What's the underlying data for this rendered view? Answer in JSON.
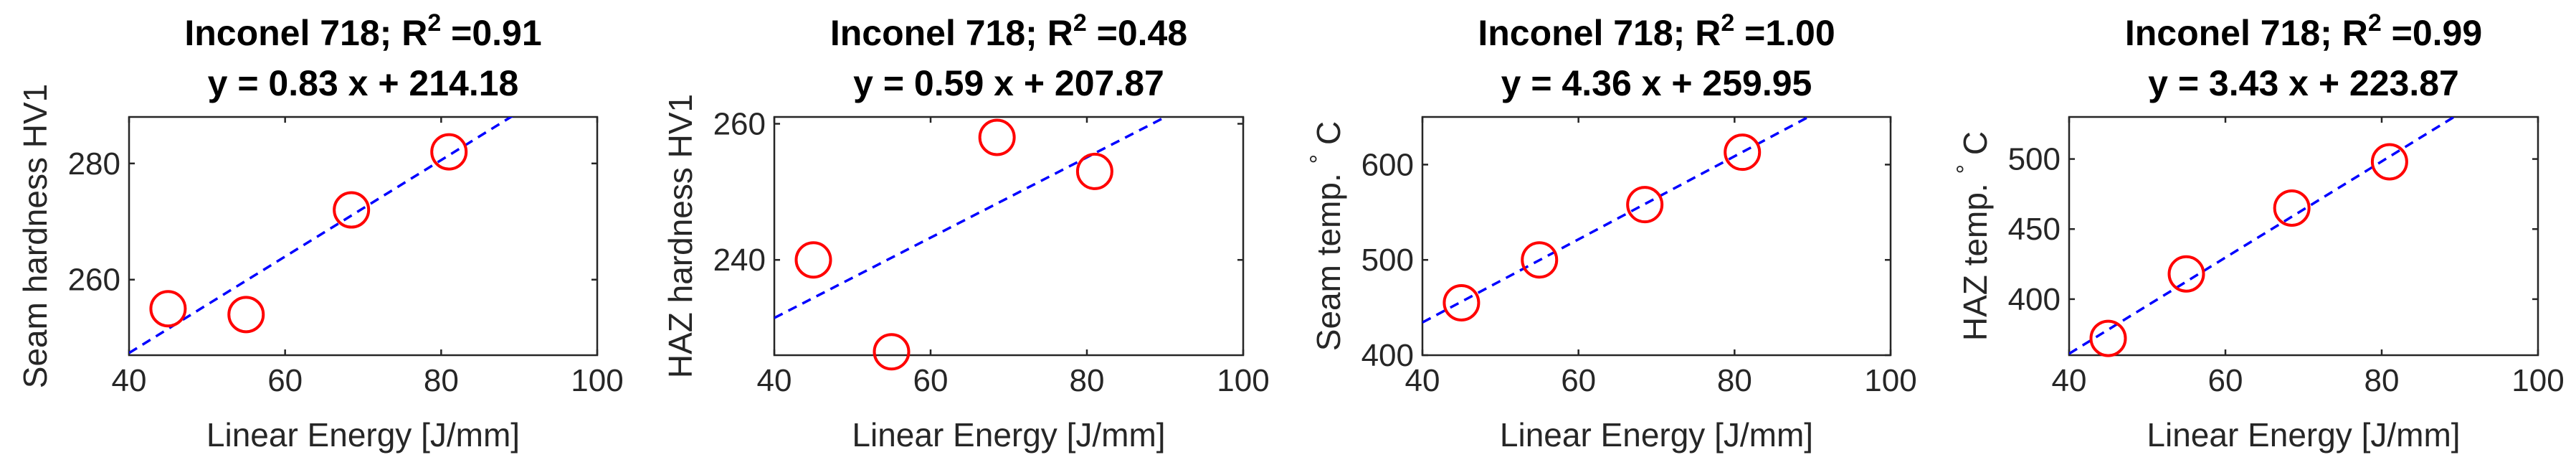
{
  "chart_data": [
    {
      "type": "scatter",
      "title_line1": "Inconel 718; R",
      "title_r2_sup": "2",
      "title_r2_value": " =0.91",
      "title_line2": "y = 0.83 x + 214.18",
      "xlabel": "Linear Energy [J/mm]",
      "ylabel": "Seam hardness HV1",
      "ylabel_degree": "",
      "xlim": [
        40,
        100
      ],
      "ylim": [
        247,
        288
      ],
      "xticks": [
        40,
        60,
        80,
        100
      ],
      "yticks": [
        260,
        280
      ],
      "grid": false,
      "series": [
        {
          "x": [
            45,
            55,
            68.5,
            81
          ],
          "y": [
            255,
            254,
            272,
            282
          ],
          "marker": "circle",
          "color": "#ff0000"
        }
      ],
      "fit": {
        "slope": 0.83,
        "intercept": 214.18,
        "color": "#0000ff",
        "style": "dashed"
      }
    },
    {
      "type": "scatter",
      "title_line1": "Inconel 718; R",
      "title_r2_sup": "2",
      "title_r2_value": " =0.48",
      "title_line2": "y = 0.59 x + 207.87",
      "xlabel": "Linear Energy [J/mm]",
      "ylabel": "HAZ hardness HV1",
      "ylabel_degree": "",
      "xlim": [
        40,
        100
      ],
      "ylim": [
        226,
        261
      ],
      "xticks": [
        40,
        60,
        80,
        100
      ],
      "yticks": [
        240,
        260
      ],
      "grid": false,
      "series": [
        {
          "x": [
            45,
            55,
            68.5,
            81
          ],
          "y": [
            240,
            226.5,
            258,
            253
          ],
          "marker": "circle",
          "color": "#ff0000"
        }
      ],
      "fit": {
        "slope": 0.59,
        "intercept": 207.87,
        "color": "#0000ff",
        "style": "dashed"
      }
    },
    {
      "type": "scatter",
      "title_line1": "Inconel 718; R",
      "title_r2_sup": "2",
      "title_r2_value": " =1.00",
      "title_line2": "y = 4.36 x + 259.95",
      "xlabel": "Linear Energy [J/mm]",
      "ylabel": "Seam temp.  C",
      "ylabel_degree": "°",
      "xlim": [
        40,
        100
      ],
      "ylim": [
        400,
        650
      ],
      "xticks": [
        40,
        60,
        80,
        100
      ],
      "yticks": [
        400,
        500,
        600
      ],
      "grid": false,
      "series": [
        {
          "x": [
            45,
            55,
            68.5,
            81
          ],
          "y": [
            455,
            500,
            558,
            613
          ],
          "marker": "circle",
          "color": "#ff0000"
        }
      ],
      "fit": {
        "slope": 4.36,
        "intercept": 259.95,
        "color": "#0000ff",
        "style": "dashed"
      }
    },
    {
      "type": "scatter",
      "title_line1": "Inconel 718; R",
      "title_r2_sup": "2",
      "title_r2_value": " =0.99",
      "title_line2": "y = 3.43 x + 223.87",
      "xlabel": "Linear Energy [J/mm]",
      "ylabel": "HAZ temp.  C",
      "ylabel_degree": "°",
      "xlim": [
        40,
        100
      ],
      "ylim": [
        360,
        530
      ],
      "xticks": [
        40,
        60,
        80,
        100
      ],
      "yticks": [
        400,
        450,
        500
      ],
      "grid": false,
      "series": [
        {
          "x": [
            45,
            55,
            68.5,
            81
          ],
          "y": [
            372,
            418,
            465,
            498
          ],
          "marker": "circle",
          "color": "#ff0000"
        }
      ],
      "fit": {
        "slope": 3.43,
        "intercept": 223.87,
        "color": "#0000ff",
        "style": "dashed"
      }
    }
  ]
}
